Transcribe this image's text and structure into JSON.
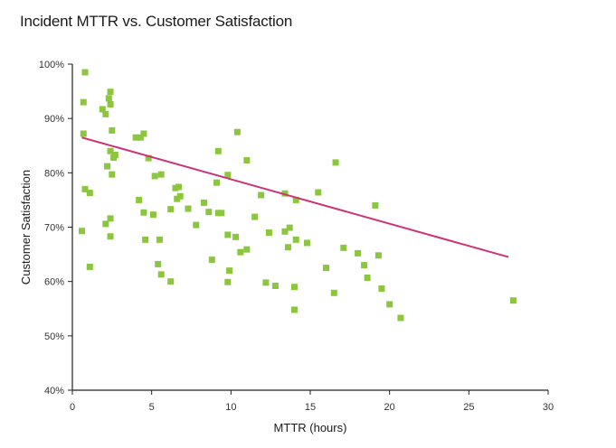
{
  "chart_data": {
    "type": "scatter",
    "title": "Incident MTTR vs. Customer Satisfaction",
    "xlabel": "MTTR (hours)",
    "ylabel": "Customer Satisfaction",
    "xlim": [
      0,
      30
    ],
    "ylim": [
      40,
      100
    ],
    "x_ticks": [
      0,
      5,
      10,
      15,
      20,
      25,
      30
    ],
    "x_tick_labels": [
      "0",
      "5",
      "10",
      "15",
      "20",
      "25",
      "30"
    ],
    "y_ticks": [
      40,
      50,
      60,
      70,
      80,
      90,
      100
    ],
    "y_tick_labels": [
      "40%",
      "50%",
      "60%",
      "70%",
      "80%",
      "90%",
      "100%"
    ],
    "grid": false,
    "legend": "none",
    "colors": {
      "points": "#8cc63f",
      "trendline": "#cc3377",
      "axis": "#222222"
    },
    "trendline": {
      "x": [
        0.6,
        27.5
      ],
      "y": [
        86.5,
        64.5
      ]
    },
    "series": [
      {
        "points": [
          [
            0.8,
            98.5
          ],
          [
            0.7,
            93.0
          ],
          [
            0.7,
            87.2
          ],
          [
            0.8,
            77.0
          ],
          [
            1.1,
            76.3
          ],
          [
            0.6,
            69.3
          ],
          [
            1.1,
            62.7
          ],
          [
            1.9,
            91.7
          ],
          [
            2.1,
            90.8
          ],
          [
            2.4,
            94.9
          ],
          [
            2.3,
            93.7
          ],
          [
            2.4,
            92.6
          ],
          [
            2.5,
            87.8
          ],
          [
            2.4,
            84.0
          ],
          [
            2.7,
            83.3
          ],
          [
            2.6,
            82.8
          ],
          [
            2.2,
            81.2
          ],
          [
            2.5,
            79.7
          ],
          [
            2.4,
            71.6
          ],
          [
            2.1,
            70.6
          ],
          [
            2.4,
            68.3
          ],
          [
            4.0,
            86.5
          ],
          [
            4.3,
            86.5
          ],
          [
            4.5,
            87.2
          ],
          [
            4.8,
            82.7
          ],
          [
            4.2,
            75.0
          ],
          [
            4.5,
            72.7
          ],
          [
            5.1,
            72.3
          ],
          [
            4.6,
            67.7
          ],
          [
            5.2,
            79.4
          ],
          [
            5.6,
            79.7
          ],
          [
            5.5,
            67.7
          ],
          [
            5.4,
            63.2
          ],
          [
            5.6,
            61.3
          ],
          [
            6.2,
            60.0
          ],
          [
            6.2,
            73.3
          ],
          [
            6.6,
            75.2
          ],
          [
            6.7,
            77.4
          ],
          [
            6.5,
            77.2
          ],
          [
            6.8,
            75.7
          ],
          [
            7.3,
            73.4
          ],
          [
            7.8,
            70.4
          ],
          [
            8.3,
            74.5
          ],
          [
            8.6,
            72.8
          ],
          [
            8.8,
            64.0
          ],
          [
            9.2,
            72.6
          ],
          [
            9.4,
            72.6
          ],
          [
            9.1,
            78.2
          ],
          [
            9.2,
            84.0
          ],
          [
            9.8,
            79.6
          ],
          [
            9.8,
            68.6
          ],
          [
            9.9,
            62.0
          ],
          [
            9.8,
            59.9
          ],
          [
            10.4,
            87.5
          ],
          [
            10.3,
            68.2
          ],
          [
            10.6,
            65.4
          ],
          [
            11.0,
            82.3
          ],
          [
            11.0,
            65.9
          ],
          [
            11.5,
            71.9
          ],
          [
            11.9,
            75.9
          ],
          [
            12.2,
            59.8
          ],
          [
            12.4,
            69.0
          ],
          [
            12.8,
            59.2
          ],
          [
            13.4,
            76.2
          ],
          [
            13.4,
            69.2
          ],
          [
            13.7,
            69.9
          ],
          [
            13.6,
            66.3
          ],
          [
            14.0,
            59.0
          ],
          [
            14.1,
            67.7
          ],
          [
            14.0,
            54.8
          ],
          [
            14.1,
            75.0
          ],
          [
            14.8,
            67.1
          ],
          [
            15.5,
            76.4
          ],
          [
            16.0,
            62.5
          ],
          [
            16.5,
            57.9
          ],
          [
            16.6,
            81.9
          ],
          [
            17.1,
            66.2
          ],
          [
            18.0,
            65.2
          ],
          [
            18.4,
            63.0
          ],
          [
            18.6,
            60.7
          ],
          [
            19.1,
            74.0
          ],
          [
            19.3,
            64.8
          ],
          [
            19.5,
            58.7
          ],
          [
            20.0,
            55.8
          ],
          [
            20.7,
            53.3
          ],
          [
            27.8,
            56.5
          ]
        ]
      }
    ]
  }
}
